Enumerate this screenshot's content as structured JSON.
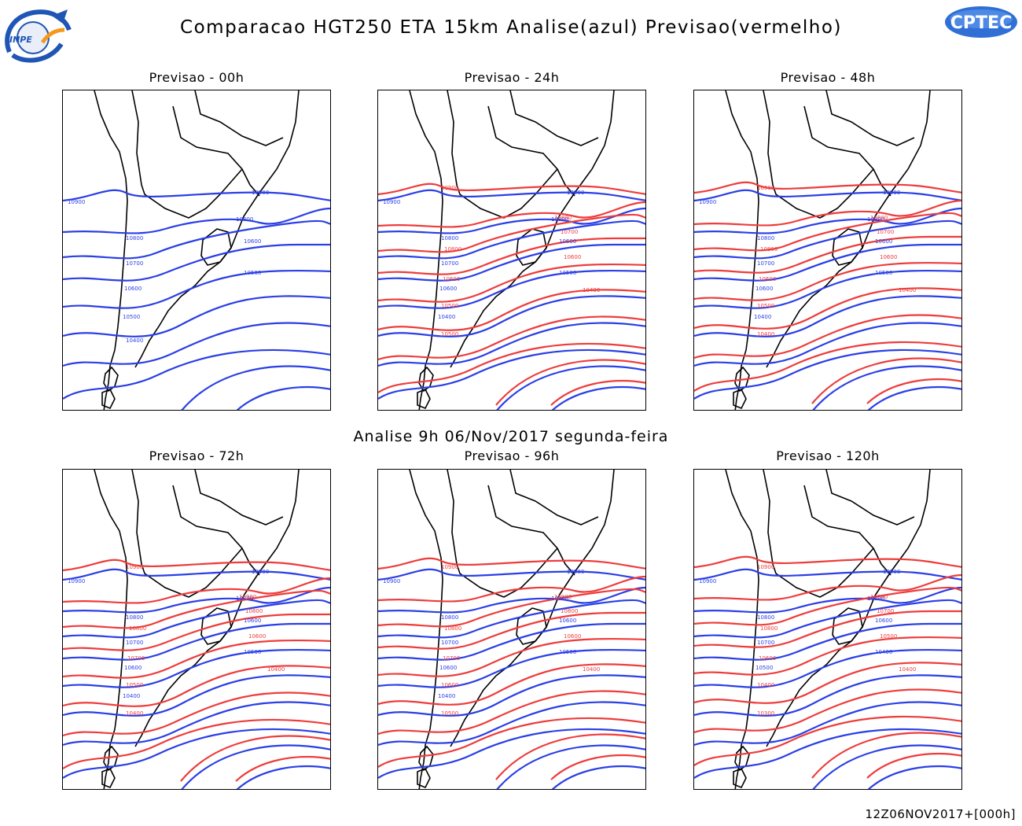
{
  "header": {
    "title": "Comparacao HGT250 ETA 15km Analise(azul) Previsao(vermelho)",
    "subtitle": "Analise 9h 06/Nov/2017 segunda-feira",
    "footer": "12Z06NOV2017+[000h]"
  },
  "logos": {
    "left": "INPE",
    "right": "CPTEC"
  },
  "colors": {
    "analysis": "#2a3fe6",
    "forecast": "#ee3c3c",
    "coast": "#000000"
  },
  "panels": [
    {
      "title": "Previsao - 00h",
      "labels_blue": [
        "10900",
        "10900",
        "10800",
        "10800",
        "10700",
        "10600",
        "10600",
        "10500",
        "10500",
        "10400"
      ],
      "labels_red": []
    },
    {
      "title": "Previsao - 24h",
      "labels_blue": [
        "10900",
        "10900",
        "10800",
        "10800",
        "10700",
        "10600",
        "10600",
        "10500",
        "10400"
      ],
      "labels_red": [
        "10900",
        "10800",
        "10800",
        "10700",
        "10600",
        "10600",
        "10500",
        "10500",
        "10400"
      ]
    },
    {
      "title": "Previsao - 48h",
      "labels_blue": [
        "10900",
        "10900",
        "10800",
        "10800",
        "10700",
        "10600",
        "10600",
        "10500",
        "10400"
      ],
      "labels_red": [
        "10900",
        "10800",
        "10800",
        "10700",
        "10600",
        "10600",
        "10500",
        "10400",
        "10400"
      ]
    },
    {
      "title": "Previsao - 72h",
      "labels_blue": [
        "10900",
        "10900",
        "10800",
        "10800",
        "10700",
        "10600",
        "10600",
        "10500",
        "10400"
      ],
      "labels_red": [
        "10900",
        "10900",
        "10800",
        "10800",
        "10700",
        "10600",
        "10500",
        "10400",
        "10400"
      ]
    },
    {
      "title": "Previsao - 96h",
      "labels_blue": [
        "10900",
        "10900",
        "10800",
        "10800",
        "10700",
        "10600",
        "10600",
        "10500",
        "10400"
      ],
      "labels_red": [
        "10900",
        "10900",
        "10800",
        "10800",
        "10700",
        "10600",
        "10600",
        "10500",
        "10400"
      ]
    },
    {
      "title": "Previsao - 120h",
      "labels_blue": [
        "10900",
        "10900",
        "10800",
        "10800",
        "10700",
        "10600",
        "10500",
        "10400"
      ],
      "labels_red": [
        "10900",
        "10800",
        "10800",
        "10700",
        "10600",
        "10500",
        "10400",
        "10300",
        "10400"
      ]
    }
  ]
}
